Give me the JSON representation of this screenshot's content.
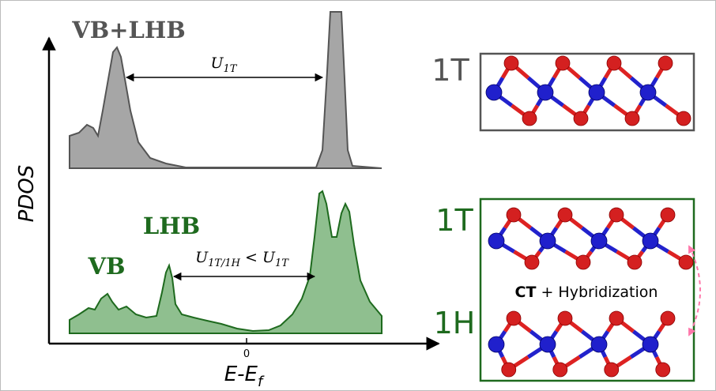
{
  "dos_panel": {
    "y_axis_label": "PDOS",
    "x_axis_label": {
      "main": "E-E",
      "subscript": "f"
    },
    "x_tick": "0",
    "top_curve": {
      "label": "VB+LHB",
      "gap_label": {
        "symbol": "U",
        "subscript": "1T"
      }
    },
    "bottom_curve": {
      "label_vb": "VB",
      "label_lhb": "LHB",
      "gap_label": {
        "lhs_symbol": "U",
        "lhs_subscript": "1T/1H",
        "relation": "<",
        "rhs_symbol": "U",
        "rhs_subscript": "1T"
      }
    }
  },
  "structures": {
    "top": {
      "label": "1T"
    },
    "bottom": {
      "upper_label": "1T",
      "lower_label": "1H",
      "interaction": {
        "bold": "CT",
        "rest": "+ Hybridization"
      }
    }
  }
}
